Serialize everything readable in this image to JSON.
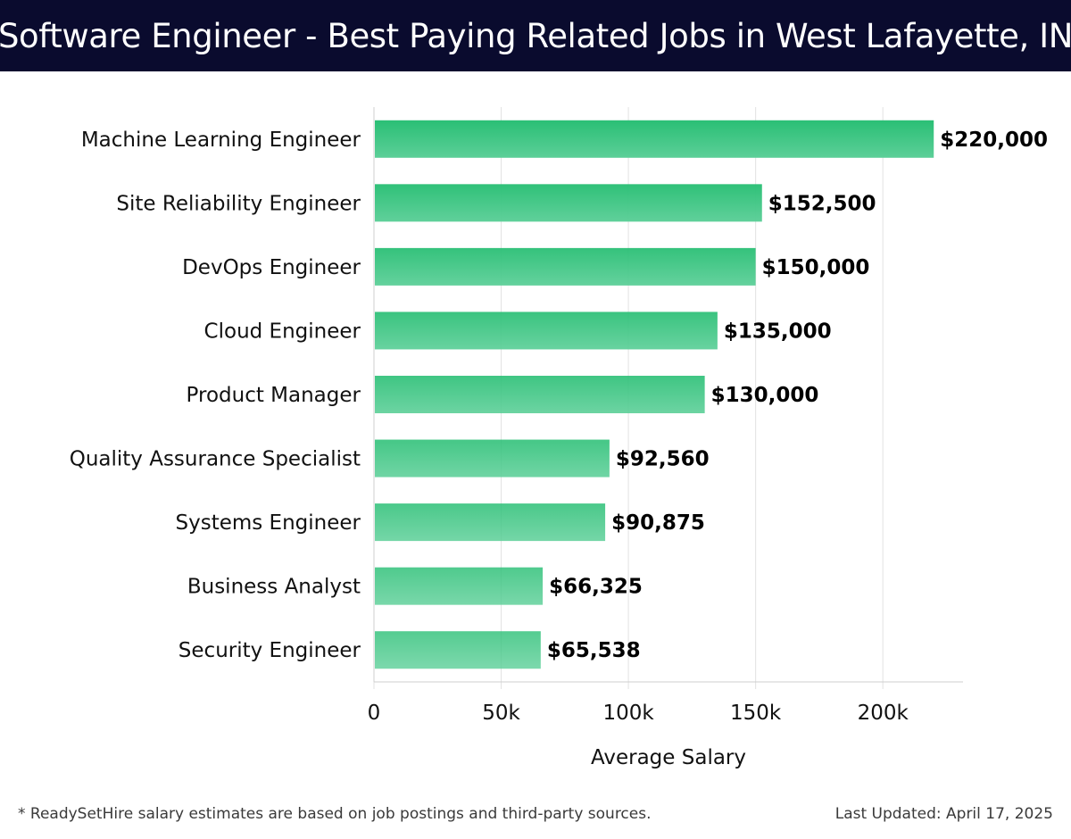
{
  "title": "Software Engineer - Best Paying Related Jobs in West Lafayette, IN",
  "footnote": "* ReadySetHire salary estimates are based on job postings and third-party sources.",
  "last_updated": "Last Updated: April 17, 2025",
  "colors": {
    "header_bg": "#0a0b2e",
    "bar_top": "#2abf75",
    "bar_bottom": "#5ccf98",
    "grid": "#e2e2e2",
    "axis": "#cfcfcf",
    "label": "#111111"
  },
  "chart_data": {
    "type": "bar",
    "orientation": "horizontal",
    "categories": [
      "Machine Learning Engineer",
      "Site Reliability Engineer",
      "DevOps Engineer",
      "Cloud Engineer",
      "Product Manager",
      "Quality Assurance Specialist",
      "Systems Engineer",
      "Business Analyst",
      "Security Engineer"
    ],
    "values": [
      220000,
      152500,
      150000,
      135000,
      130000,
      92560,
      90875,
      66325,
      65538
    ],
    "value_labels": [
      "$220,000",
      "$152,500",
      "$150,000",
      "$135,000",
      "$130,000",
      "$92,560",
      "$90,875",
      "$66,325",
      "$65,538"
    ],
    "xlabel": "Average Salary",
    "ylabel": "",
    "xlim": [
      0,
      231500
    ],
    "xticks": [
      0,
      50000,
      100000,
      150000,
      200000
    ],
    "xtick_labels": [
      "0",
      "50k",
      "100k",
      "150k",
      "200k"
    ],
    "grid": "vertical",
    "legend": "none"
  }
}
